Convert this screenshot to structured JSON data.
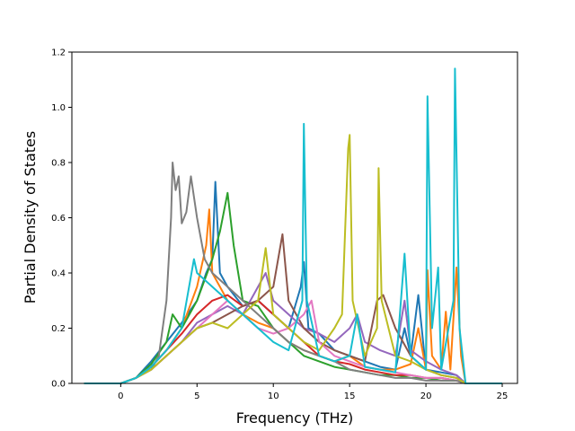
{
  "chart_data": {
    "type": "line",
    "title": "",
    "xlabel": "Frequency (THz)",
    "ylabel": "Partial Density of States",
    "xlim": [
      -3.2,
      26
    ],
    "ylim": [
      0,
      1.2
    ],
    "xticks": [
      0,
      5,
      10,
      15,
      20,
      25
    ],
    "yticks": [
      0.0,
      0.2,
      0.4,
      0.6,
      0.8,
      1.0,
      1.2
    ],
    "xtick_labels": [
      "0",
      "5",
      "10",
      "15",
      "20",
      "25"
    ],
    "ytick_labels": [
      "0.0",
      "0.2",
      "0.4",
      "0.6",
      "0.8",
      "1.0",
      "1.2"
    ],
    "grid": false,
    "legend": "none",
    "series": [
      {
        "color": "#1f77b4",
        "points": [
          [
            -2.4,
            0
          ],
          [
            0,
            0
          ],
          [
            1,
            0.02
          ],
          [
            2,
            0.08
          ],
          [
            3,
            0.15
          ],
          [
            4,
            0.22
          ],
          [
            5,
            0.3
          ],
          [
            5.6,
            0.4
          ],
          [
            6,
            0.45
          ],
          [
            6.2,
            0.73
          ],
          [
            6.5,
            0.4
          ],
          [
            7,
            0.35
          ],
          [
            8,
            0.28
          ],
          [
            9,
            0.3
          ],
          [
            10,
            0.25
          ],
          [
            11,
            0.2
          ],
          [
            11.8,
            0.35
          ],
          [
            12,
            0.44
          ],
          [
            12.3,
            0.2
          ],
          [
            13,
            0.18
          ],
          [
            14,
            0.12
          ],
          [
            15,
            0.1
          ],
          [
            16,
            0.08
          ],
          [
            17,
            0.06
          ],
          [
            18,
            0.05
          ],
          [
            18.6,
            0.2
          ],
          [
            19,
            0.1
          ],
          [
            19.5,
            0.32
          ],
          [
            20,
            0.05
          ],
          [
            21,
            0.04
          ],
          [
            22,
            0.03
          ],
          [
            22.6,
            0
          ],
          [
            25,
            0
          ]
        ]
      },
      {
        "color": "#ff7f0e",
        "points": [
          [
            -2.4,
            0
          ],
          [
            0,
            0
          ],
          [
            1,
            0.02
          ],
          [
            2,
            0.06
          ],
          [
            3,
            0.12
          ],
          [
            4,
            0.2
          ],
          [
            5,
            0.35
          ],
          [
            5.6,
            0.5
          ],
          [
            5.8,
            0.63
          ],
          [
            6,
            0.4
          ],
          [
            7,
            0.3
          ],
          [
            8,
            0.25
          ],
          [
            9,
            0.22
          ],
          [
            10,
            0.2
          ],
          [
            11,
            0.15
          ],
          [
            12,
            0.12
          ],
          [
            13,
            0.1
          ],
          [
            14,
            0.08
          ],
          [
            15,
            0.1
          ],
          [
            16,
            0.06
          ],
          [
            17,
            0.05
          ],
          [
            18,
            0.05
          ],
          [
            19,
            0.07
          ],
          [
            19.5,
            0.2
          ],
          [
            20,
            0.05
          ],
          [
            20.1,
            0.41
          ],
          [
            20.4,
            0.1
          ],
          [
            21,
            0.05
          ],
          [
            21.3,
            0.26
          ],
          [
            21.6,
            0.05
          ],
          [
            22,
            0.42
          ],
          [
            22.3,
            0.1
          ],
          [
            22.6,
            0
          ],
          [
            25,
            0
          ]
        ]
      },
      {
        "color": "#2ca02c",
        "points": [
          [
            -2.4,
            0
          ],
          [
            0,
            0
          ],
          [
            1,
            0.02
          ],
          [
            2,
            0.07
          ],
          [
            3,
            0.15
          ],
          [
            3.4,
            0.25
          ],
          [
            4,
            0.2
          ],
          [
            5,
            0.3
          ],
          [
            6,
            0.45
          ],
          [
            6.5,
            0.55
          ],
          [
            7,
            0.69
          ],
          [
            7.4,
            0.5
          ],
          [
            8,
            0.3
          ],
          [
            9,
            0.28
          ],
          [
            10,
            0.2
          ],
          [
            11,
            0.15
          ],
          [
            12,
            0.1
          ],
          [
            13,
            0.08
          ],
          [
            14,
            0.06
          ],
          [
            15,
            0.05
          ],
          [
            16,
            0.04
          ],
          [
            17,
            0.03
          ],
          [
            18,
            0.03
          ],
          [
            19,
            0.02
          ],
          [
            20,
            0.02
          ],
          [
            21,
            0.01
          ],
          [
            22,
            0.01
          ],
          [
            22.6,
            0
          ],
          [
            25,
            0
          ]
        ]
      },
      {
        "color": "#d62728",
        "points": [
          [
            -2.4,
            0
          ],
          [
            0,
            0
          ],
          [
            1,
            0.02
          ],
          [
            2,
            0.06
          ],
          [
            3,
            0.12
          ],
          [
            4,
            0.18
          ],
          [
            5,
            0.25
          ],
          [
            6,
            0.3
          ],
          [
            7,
            0.32
          ],
          [
            8,
            0.28
          ],
          [
            9,
            0.3
          ],
          [
            10,
            0.25
          ],
          [
            11,
            0.2
          ],
          [
            12,
            0.15
          ],
          [
            13,
            0.1
          ],
          [
            14,
            0.08
          ],
          [
            15,
            0.07
          ],
          [
            16,
            0.05
          ],
          [
            17,
            0.04
          ],
          [
            18,
            0.03
          ],
          [
            19,
            0.03
          ],
          [
            20,
            0.02
          ],
          [
            21,
            0.02
          ],
          [
            22,
            0.01
          ],
          [
            22.6,
            0
          ],
          [
            25,
            0
          ]
        ]
      },
      {
        "color": "#9467bd",
        "points": [
          [
            -2.4,
            0
          ],
          [
            0,
            0
          ],
          [
            1,
            0.02
          ],
          [
            2,
            0.05
          ],
          [
            3,
            0.1
          ],
          [
            4,
            0.15
          ],
          [
            5,
            0.22
          ],
          [
            6,
            0.25
          ],
          [
            7,
            0.28
          ],
          [
            8,
            0.25
          ],
          [
            9,
            0.35
          ],
          [
            9.5,
            0.4
          ],
          [
            10,
            0.3
          ],
          [
            11,
            0.25
          ],
          [
            12,
            0.2
          ],
          [
            13,
            0.18
          ],
          [
            14,
            0.15
          ],
          [
            15,
            0.2
          ],
          [
            15.5,
            0.25
          ],
          [
            16,
            0.15
          ],
          [
            17,
            0.12
          ],
          [
            18,
            0.1
          ],
          [
            18.6,
            0.3
          ],
          [
            19,
            0.12
          ],
          [
            20,
            0.08
          ],
          [
            21,
            0.05
          ],
          [
            22,
            0.03
          ],
          [
            22.6,
            0
          ],
          [
            25,
            0
          ]
        ]
      },
      {
        "color": "#8c564b",
        "points": [
          [
            -2.4,
            0
          ],
          [
            0,
            0
          ],
          [
            1,
            0.02
          ],
          [
            2,
            0.05
          ],
          [
            3,
            0.1
          ],
          [
            4,
            0.15
          ],
          [
            5,
            0.2
          ],
          [
            6,
            0.22
          ],
          [
            7,
            0.25
          ],
          [
            8,
            0.28
          ],
          [
            9,
            0.3
          ],
          [
            10,
            0.35
          ],
          [
            10.6,
            0.54
          ],
          [
            11,
            0.3
          ],
          [
            12,
            0.2
          ],
          [
            13,
            0.15
          ],
          [
            14,
            0.12
          ],
          [
            15,
            0.1
          ],
          [
            16,
            0.08
          ],
          [
            16.8,
            0.3
          ],
          [
            17.2,
            0.32
          ],
          [
            18,
            0.2
          ],
          [
            19,
            0.1
          ],
          [
            20,
            0.05
          ],
          [
            21,
            0.03
          ],
          [
            22,
            0.02
          ],
          [
            22.6,
            0
          ],
          [
            25,
            0
          ]
        ]
      },
      {
        "color": "#e377c2",
        "points": [
          [
            -2.4,
            0
          ],
          [
            0,
            0
          ],
          [
            1,
            0.02
          ],
          [
            2,
            0.05
          ],
          [
            3,
            0.1
          ],
          [
            4,
            0.15
          ],
          [
            5,
            0.2
          ],
          [
            6,
            0.25
          ],
          [
            7,
            0.3
          ],
          [
            8,
            0.25
          ],
          [
            9,
            0.2
          ],
          [
            10,
            0.18
          ],
          [
            11,
            0.2
          ],
          [
            12,
            0.25
          ],
          [
            12.5,
            0.3
          ],
          [
            13,
            0.15
          ],
          [
            14,
            0.1
          ],
          [
            15,
            0.08
          ],
          [
            16,
            0.06
          ],
          [
            17,
            0.05
          ],
          [
            18,
            0.04
          ],
          [
            19,
            0.03
          ],
          [
            20,
            0.02
          ],
          [
            21,
            0.02
          ],
          [
            22,
            0.01
          ],
          [
            22.6,
            0
          ],
          [
            25,
            0
          ]
        ]
      },
      {
        "color": "#7f7f7f",
        "points": [
          [
            -2.4,
            0
          ],
          [
            0,
            0
          ],
          [
            1,
            0.02
          ],
          [
            2,
            0.05
          ],
          [
            2.5,
            0.1
          ],
          [
            3,
            0.3
          ],
          [
            3.3,
            0.6
          ],
          [
            3.4,
            0.8
          ],
          [
            3.6,
            0.7
          ],
          [
            3.8,
            0.75
          ],
          [
            4,
            0.58
          ],
          [
            4.3,
            0.62
          ],
          [
            4.6,
            0.75
          ],
          [
            5,
            0.6
          ],
          [
            5.5,
            0.45
          ],
          [
            6,
            0.4
          ],
          [
            7,
            0.35
          ],
          [
            8,
            0.3
          ],
          [
            9,
            0.25
          ],
          [
            10,
            0.2
          ],
          [
            11,
            0.15
          ],
          [
            12,
            0.12
          ],
          [
            13,
            0.1
          ],
          [
            14,
            0.08
          ],
          [
            15,
            0.05
          ],
          [
            16,
            0.04
          ],
          [
            17,
            0.03
          ],
          [
            18,
            0.02
          ],
          [
            19,
            0.02
          ],
          [
            20,
            0.01
          ],
          [
            21,
            0.01
          ],
          [
            22,
            0.01
          ],
          [
            22.6,
            0
          ],
          [
            25,
            0
          ]
        ]
      },
      {
        "color": "#bcbd22",
        "points": [
          [
            -2.4,
            0
          ],
          [
            0,
            0
          ],
          [
            1,
            0.02
          ],
          [
            2,
            0.05
          ],
          [
            3,
            0.1
          ],
          [
            4,
            0.15
          ],
          [
            5,
            0.2
          ],
          [
            6,
            0.22
          ],
          [
            7,
            0.2
          ],
          [
            8,
            0.25
          ],
          [
            9,
            0.3
          ],
          [
            9.5,
            0.49
          ],
          [
            10,
            0.25
          ],
          [
            11,
            0.2
          ],
          [
            12,
            0.15
          ],
          [
            13,
            0.12
          ],
          [
            14,
            0.2
          ],
          [
            14.5,
            0.25
          ],
          [
            14.9,
            0.85
          ],
          [
            15,
            0.9
          ],
          [
            15.2,
            0.3
          ],
          [
            16,
            0.1
          ],
          [
            16.8,
            0.2
          ],
          [
            16.9,
            0.78
          ],
          [
            17.1,
            0.3
          ],
          [
            18,
            0.1
          ],
          [
            19,
            0.08
          ],
          [
            20,
            0.05
          ],
          [
            21,
            0.03
          ],
          [
            22,
            0.02
          ],
          [
            22.6,
            0
          ],
          [
            25,
            0
          ]
        ]
      },
      {
        "color": "#17becf",
        "points": [
          [
            -2.4,
            0
          ],
          [
            0,
            0
          ],
          [
            1,
            0.02
          ],
          [
            2,
            0.06
          ],
          [
            3,
            0.12
          ],
          [
            4,
            0.2
          ],
          [
            4.8,
            0.45
          ],
          [
            5,
            0.4
          ],
          [
            6,
            0.35
          ],
          [
            7,
            0.3
          ],
          [
            8,
            0.25
          ],
          [
            9,
            0.2
          ],
          [
            10,
            0.15
          ],
          [
            11,
            0.12
          ],
          [
            11.9,
            0.3
          ],
          [
            12,
            0.94
          ],
          [
            12.2,
            0.3
          ],
          [
            13,
            0.1
          ],
          [
            14,
            0.08
          ],
          [
            15,
            0.1
          ],
          [
            15.5,
            0.25
          ],
          [
            16,
            0.06
          ],
          [
            17,
            0.05
          ],
          [
            18,
            0.04
          ],
          [
            18.6,
            0.47
          ],
          [
            19,
            0.1
          ],
          [
            20,
            0.05
          ],
          [
            20.1,
            1.04
          ],
          [
            20.4,
            0.2
          ],
          [
            20.8,
            0.42
          ],
          [
            21,
            0.05
          ],
          [
            21.8,
            0.3
          ],
          [
            21.9,
            1.14
          ],
          [
            22.2,
            0.2
          ],
          [
            22.6,
            0
          ],
          [
            25,
            0
          ]
        ]
      }
    ]
  }
}
